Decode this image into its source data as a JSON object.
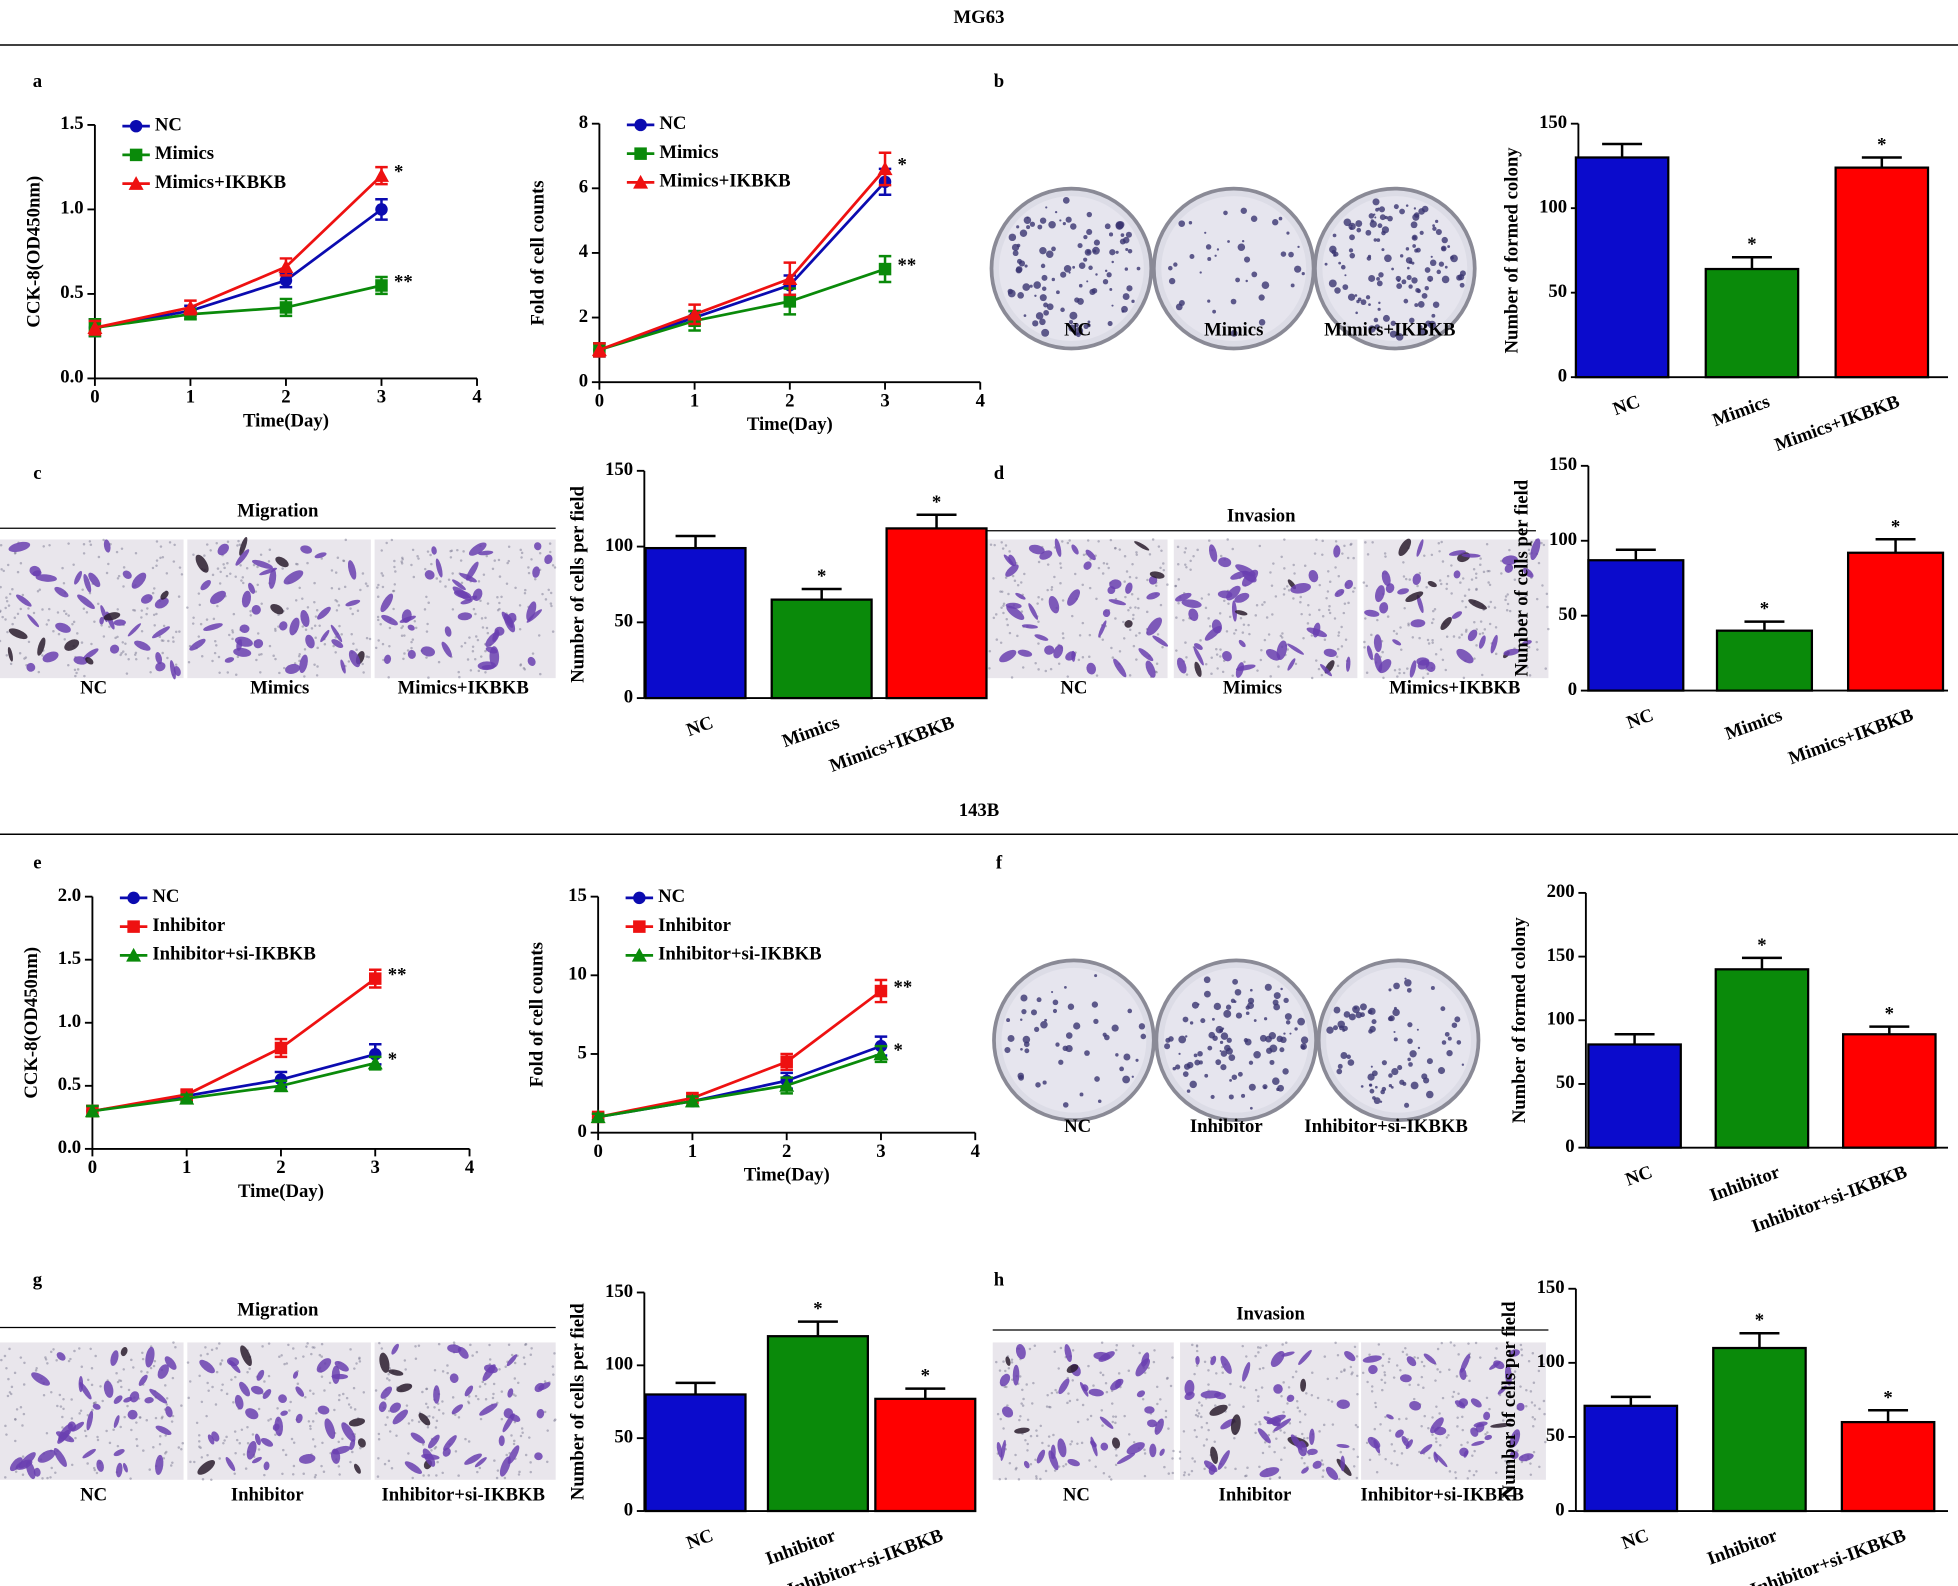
{
  "sections": [
    {
      "title": "MG63"
    },
    {
      "title": "143B"
    }
  ],
  "panels": [
    "a",
    "b",
    "c",
    "d",
    "e",
    "f",
    "g",
    "h"
  ],
  "images": [
    {
      "captions": [
        "NC",
        "Mimics",
        "Mimics+IKBKB"
      ]
    },
    {
      "title": "Migration",
      "captions": [
        "NC",
        "Mimics",
        "Mimics+IKBKB"
      ]
    },
    {
      "title": "Invasion",
      "captions": [
        "NC",
        "Mimics",
        "Mimics+IKBKB"
      ]
    },
    {
      "captions": [
        "NC",
        "Inhibitor",
        "Inhibitor+si-IKBKB"
      ]
    },
    {
      "title": "Migration",
      "captions": [
        "NC",
        "Inhibitor",
        "Inhibitor+si-IKBKB"
      ]
    },
    {
      "title": "Invasion",
      "captions": [
        "NC",
        "Inhibitor",
        "Inhibitor+si-IKBKB"
      ]
    }
  ],
  "chart_data": [
    {
      "type": "line",
      "y_label": "CCK-8(OD450nm)",
      "x_label": "Time(Day)",
      "x": [
        0,
        1,
        2,
        3
      ],
      "xlim": [
        0,
        4
      ],
      "xticks": [
        0,
        1,
        2,
        3,
        4
      ],
      "ylim": [
        0,
        1.5
      ],
      "yticks": [
        {
          "value": 0,
          "label": "0.0"
        },
        0.5,
        {
          "value": 1,
          "label": "1.0"
        },
        1.5
      ],
      "legend": "upper left",
      "series": [
        {
          "name": "NC",
          "color": "#0b0bb0",
          "marker": "circle",
          "values": [
            0.3,
            0.4,
            0.58,
            1.0
          ],
          "errors": [
            0.05,
            0.03,
            0.04,
            0.06
          ]
        },
        {
          "name": "Mimics",
          "color": "#0a8a0a",
          "marker": "square",
          "values": [
            0.3,
            0.38,
            0.42,
            0.55
          ],
          "errors": [
            0.05,
            0.03,
            0.05,
            0.05
          ],
          "annotation": "**"
        },
        {
          "name": "Mimics+IKBKB",
          "color": "#ee1111",
          "marker": "triangle",
          "values": [
            0.3,
            0.42,
            0.66,
            1.2
          ],
          "errors": [
            0.04,
            0.04,
            0.05,
            0.05
          ],
          "annotation": "*"
        }
      ]
    },
    {
      "type": "line",
      "y_label": "Fold of cell counts",
      "x_label": "Time(Day)",
      "x": [
        0,
        1,
        2,
        3
      ],
      "xlim": [
        0,
        4
      ],
      "xticks": [
        0,
        1,
        2,
        3,
        4
      ],
      "ylim": [
        0,
        8
      ],
      "yticks": [
        0,
        2,
        4,
        6,
        8
      ],
      "legend": "upper left",
      "series": [
        {
          "name": "NC",
          "color": "#0b0bb0",
          "marker": "circle",
          "values": [
            1,
            2.0,
            3.0,
            6.2
          ],
          "errors": [
            0.2,
            0.2,
            0.3,
            0.4
          ]
        },
        {
          "name": "Mimics",
          "color": "#0a8a0a",
          "marker": "square",
          "values": [
            1,
            1.9,
            2.5,
            3.5
          ],
          "errors": [
            0.2,
            0.3,
            0.4,
            0.4
          ],
          "annotation": "**"
        },
        {
          "name": "Mimics+IKBKB",
          "color": "#ee1111",
          "marker": "triangle",
          "values": [
            1,
            2.1,
            3.2,
            6.6
          ],
          "errors": [
            0.2,
            0.3,
            0.5,
            0.5
          ],
          "annotation": "*"
        }
      ]
    },
    {
      "type": "bar",
      "y_label": "Number of formed colony",
      "categories": [
        "NC",
        "Mimics",
        "Mimics+IKBKB"
      ],
      "values": [
        130,
        64,
        124
      ],
      "errors": [
        8,
        7,
        6
      ],
      "annotations": [
        null,
        "*",
        "*"
      ],
      "colors": [
        "#0b0bcc",
        "#0a8a0a",
        "#ff0000"
      ],
      "ylim": [
        0,
        150
      ],
      "yticks": [
        0,
        50,
        100,
        150
      ]
    },
    {
      "type": "bar",
      "y_label": "Number of cells per field",
      "categories": [
        "NC",
        "Mimics",
        "Mimics+IKBKB"
      ],
      "values": [
        99,
        65,
        112
      ],
      "errors": [
        8,
        7,
        9
      ],
      "annotations": [
        null,
        "*",
        "*"
      ],
      "colors": [
        "#0b0bcc",
        "#0a8a0a",
        "#ff0000"
      ],
      "ylim": [
        0,
        150
      ],
      "yticks": [
        0,
        50,
        100,
        150
      ]
    },
    {
      "type": "bar",
      "y_label": "Number of cells per field",
      "categories": [
        "NC",
        "Mimics",
        "Mimics+IKBKB"
      ],
      "values": [
        87,
        40,
        92
      ],
      "errors": [
        7,
        6,
        9
      ],
      "annotations": [
        null,
        "*",
        "*"
      ],
      "colors": [
        "#0b0bcc",
        "#0a8a0a",
        "#ff0000"
      ],
      "ylim": [
        0,
        150
      ],
      "yticks": [
        0,
        50,
        100,
        150
      ]
    },
    {
      "type": "line",
      "y_label": "CCK-8(OD450nm)",
      "x_label": "Time(Day)",
      "x": [
        0,
        1,
        2,
        3
      ],
      "xlim": [
        0,
        4
      ],
      "xticks": [
        0,
        1,
        2,
        3,
        4
      ],
      "ylim": [
        0,
        2
      ],
      "yticks": [
        {
          "value": 0,
          "label": "0.0"
        },
        0.5,
        {
          "value": 1,
          "label": "1.0"
        },
        1.5,
        {
          "value": 2,
          "label": "2.0"
        }
      ],
      "legend": "upper left",
      "series": [
        {
          "name": "NC",
          "color": "#0b0bb0",
          "marker": "circle",
          "values": [
            0.3,
            0.42,
            0.55,
            0.75
          ],
          "errors": [
            0.04,
            0.04,
            0.06,
            0.08
          ]
        },
        {
          "name": "Inhibitor",
          "color": "#ee1111",
          "marker": "square",
          "values": [
            0.3,
            0.43,
            0.8,
            1.35
          ],
          "errors": [
            0.04,
            0.04,
            0.07,
            0.07
          ],
          "annotation": "**"
        },
        {
          "name": "Inhibitor+si-IKBKB",
          "color": "#0a8a0a",
          "marker": "triangle",
          "values": [
            0.3,
            0.4,
            0.5,
            0.68
          ],
          "errors": [
            0.04,
            0.03,
            0.04,
            0.05
          ],
          "annotation": "*"
        }
      ]
    },
    {
      "type": "line",
      "y_label": "Fold of cell counts",
      "x_label": "Time(Day)",
      "x": [
        0,
        1,
        2,
        3
      ],
      "xlim": [
        0,
        4
      ],
      "xticks": [
        0,
        1,
        2,
        3,
        4
      ],
      "ylim": [
        0,
        15
      ],
      "yticks": [
        0,
        5,
        10,
        15
      ],
      "legend": "upper left",
      "series": [
        {
          "name": "NC",
          "color": "#0b0bb0",
          "marker": "circle",
          "values": [
            1,
            2,
            3.3,
            5.5
          ],
          "errors": [
            0.2,
            0.3,
            0.5,
            0.6
          ]
        },
        {
          "name": "Inhibitor",
          "color": "#ee1111",
          "marker": "square",
          "values": [
            1,
            2.2,
            4.5,
            9
          ],
          "errors": [
            0.2,
            0.3,
            0.5,
            0.7
          ],
          "annotation": "**"
        },
        {
          "name": "Inhibitor+si-IKBKB",
          "color": "#0a8a0a",
          "marker": "triangle",
          "values": [
            1,
            2,
            3,
            5
          ],
          "errors": [
            0.2,
            0.3,
            0.5,
            0.5
          ],
          "annotation": "*"
        }
      ]
    },
    {
      "type": "bar",
      "y_label": "Number of formed colony",
      "categories": [
        "NC",
        "Inhibitor",
        "Inhibitor+si-IKBKB"
      ],
      "values": [
        81,
        140,
        89
      ],
      "errors": [
        8,
        9,
        6
      ],
      "annotations": [
        null,
        "*",
        "*"
      ],
      "colors": [
        "#0b0bcc",
        "#0a8a0a",
        "#ff0000"
      ],
      "ylim": [
        0,
        200
      ],
      "yticks": [
        0,
        50,
        100,
        150,
        200
      ]
    },
    {
      "type": "bar",
      "y_label": "Number of cells per field",
      "categories": [
        "NC",
        "Inhibitor",
        "Inhibitor+si-IKBKB"
      ],
      "values": [
        80,
        120,
        77
      ],
      "errors": [
        8,
        10,
        7
      ],
      "annotations": [
        null,
        "*",
        "*"
      ],
      "colors": [
        "#0b0bcc",
        "#0a8a0a",
        "#ff0000"
      ],
      "ylim": [
        0,
        150
      ],
      "yticks": [
        0,
        50,
        100,
        150
      ]
    },
    {
      "type": "bar",
      "y_label": "Number of cells per field",
      "categories": [
        "NC",
        "Inhibitor",
        "Inhibitor+si-IKBKB"
      ],
      "values": [
        71,
        110,
        60
      ],
      "errors": [
        6,
        10,
        8
      ],
      "annotations": [
        null,
        "*",
        "*"
      ],
      "colors": [
        "#0b0bcc",
        "#0a8a0a",
        "#ff0000"
      ],
      "ylim": [
        0,
        150
      ],
      "yticks": [
        0,
        50,
        100,
        150
      ]
    }
  ]
}
